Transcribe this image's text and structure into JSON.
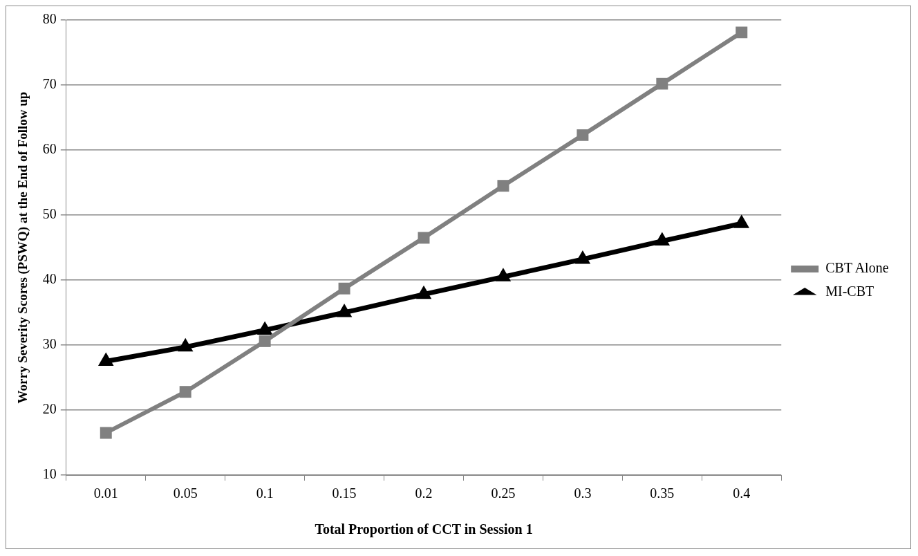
{
  "chart_data": {
    "type": "line",
    "xlabel": "Total Proportion of CCT in Session 1",
    "ylabel": "Worry Severity Scores (PSWQ) at the End of Follow up",
    "categories": [
      "0.01",
      "0.05",
      "0.1",
      "0.15",
      "0.2",
      "0.25",
      "0.3",
      "0.35",
      "0.4"
    ],
    "series": [
      {
        "name": "CBT Alone",
        "color": "#808080",
        "marker": "square",
        "values": [
          16.5,
          22.8,
          30.6,
          38.7,
          46.5,
          54.5,
          62.3,
          70.2,
          78.1
        ]
      },
      {
        "name": "MI-CBT",
        "color": "#000000",
        "marker": "triangle",
        "values": [
          27.5,
          29.7,
          32.3,
          35.0,
          37.8,
          40.5,
          43.2,
          46.0,
          48.7
        ]
      }
    ],
    "ylim": [
      10,
      80
    ],
    "yticks": [
      10,
      20,
      30,
      40,
      50,
      60,
      70,
      80
    ],
    "grid": "y",
    "legend": "right"
  }
}
